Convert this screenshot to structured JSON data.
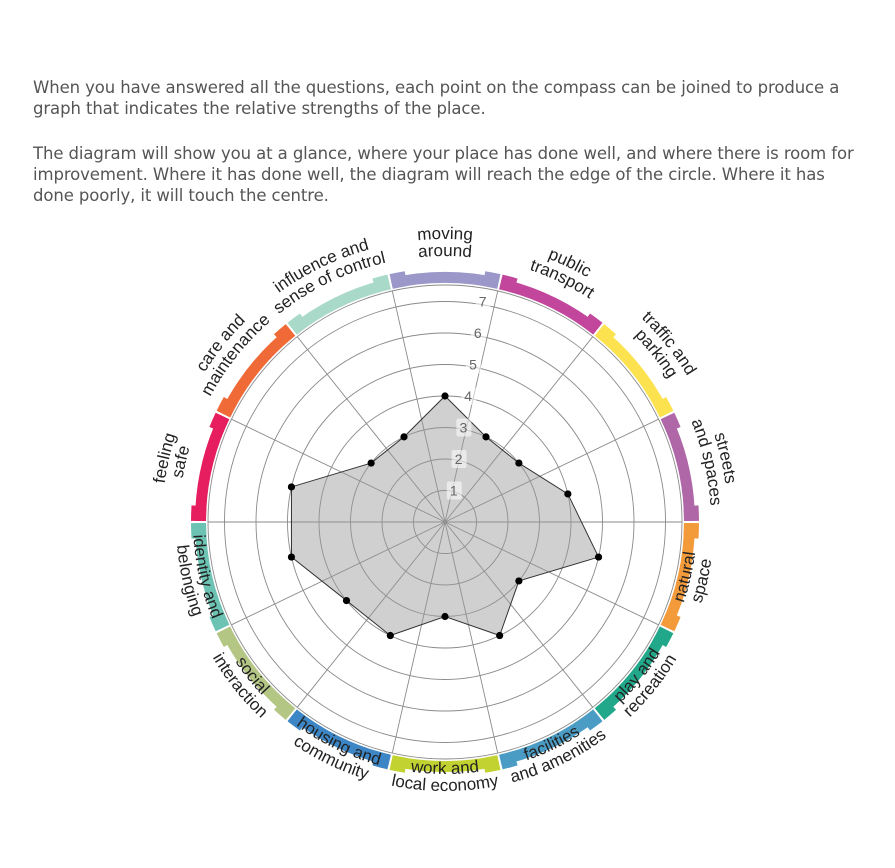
{
  "intro": {
    "paragraph1": "When you have answered all the questions, each point on the compass can be joined to produce a graph that indicates the relative strengths of the place.",
    "paragraph2": "The diagram will show you at a glance, where your place has done well, and where there is room for improvement. Where it has done well, the diagram will reach the edge of the circle. Where it has done poorly, it will touch the centre."
  },
  "chart_data": {
    "type": "radar",
    "scale": {
      "min": 0,
      "max": 7,
      "ticks": [
        "1",
        "2",
        "3",
        "4",
        "5",
        "6",
        "7"
      ]
    },
    "categories": [
      {
        "label": [
          "moving",
          "around"
        ],
        "color": "#9b97c9",
        "value": 4
      },
      {
        "label": [
          "public",
          "transport"
        ],
        "color": "#c2479c",
        "value": 3
      },
      {
        "label": [
          "traffic and",
          "parking"
        ],
        "color": "#fde24f",
        "value": 3
      },
      {
        "label": [
          "streets",
          "and spaces"
        ],
        "color": "#b067a8",
        "value": 4
      },
      {
        "label": [
          "natural",
          "space"
        ],
        "color": "#f39a3b",
        "value": 5
      },
      {
        "label": [
          "play and",
          "recreation"
        ],
        "color": "#21a78a",
        "value": 3
      },
      {
        "label": [
          "facilities",
          "and amenities"
        ],
        "color": "#4a9cc5",
        "value": 4
      },
      {
        "label": [
          "work and",
          "local economy"
        ],
        "color": "#c2d230",
        "value": 3
      },
      {
        "label": [
          "housing and",
          "community"
        ],
        "color": "#3d86c6",
        "value": 4
      },
      {
        "label": [
          "social",
          "interaction"
        ],
        "color": "#b3c684",
        "value": 4
      },
      {
        "label": [
          "identity and",
          "belonging"
        ],
        "color": "#6cc3b3",
        "value": 5
      },
      {
        "label": [
          "feeling",
          "safe"
        ],
        "color": "#e61e5f",
        "value": 5
      },
      {
        "label": [
          "care and",
          "maintenance"
        ],
        "color": "#ef6a36",
        "value": 3
      },
      {
        "label": [
          "influence and",
          "sense of control"
        ],
        "color": "#a9d9c8",
        "value": 3
      }
    ]
  }
}
